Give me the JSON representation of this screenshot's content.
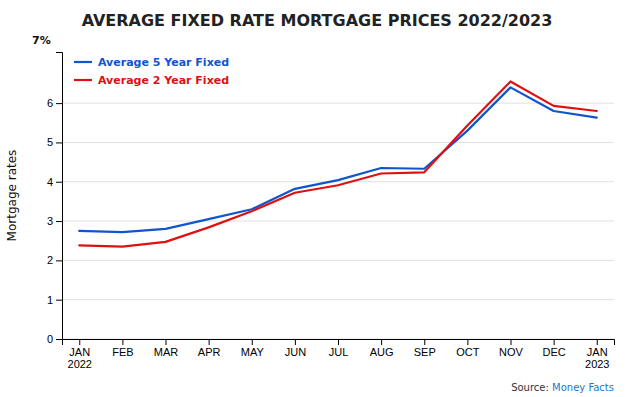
{
  "chart_data": {
    "type": "line",
    "title": "AVERAGE FIXED RATE MORTGAGE PRICES 2022/2023",
    "y_label": "Mortgage rates",
    "annotations": [
      "7%",
      "Source: ",
      "Money Facts"
    ],
    "categories": [
      "JAN\n2022",
      "FEB",
      "MAR",
      "APR",
      "MAY",
      "JUN",
      "JUL",
      "AUG",
      "SEP",
      "OCT",
      "NOV",
      "DEC",
      "JAN\n2023"
    ],
    "series": [
      {
        "name": "Average 5 Year Fixed",
        "color": "#1155cc",
        "values": [
          2.75,
          2.72,
          2.8,
          3.05,
          3.3,
          3.82,
          4.04,
          4.35,
          4.33,
          5.3,
          6.4,
          5.8,
          5.63
        ]
      },
      {
        "name": "Average 2 Year Fixed",
        "color": "#dd1111",
        "values": [
          2.38,
          2.35,
          2.47,
          2.84,
          3.25,
          3.72,
          3.91,
          4.21,
          4.24,
          5.43,
          6.55,
          5.93,
          5.8
        ]
      }
    ],
    "ylim": [
      0,
      7.3
    ],
    "yticks": [
      0,
      1,
      2,
      3,
      4,
      5,
      6
    ],
    "grid": true,
    "legend": "upper left"
  }
}
